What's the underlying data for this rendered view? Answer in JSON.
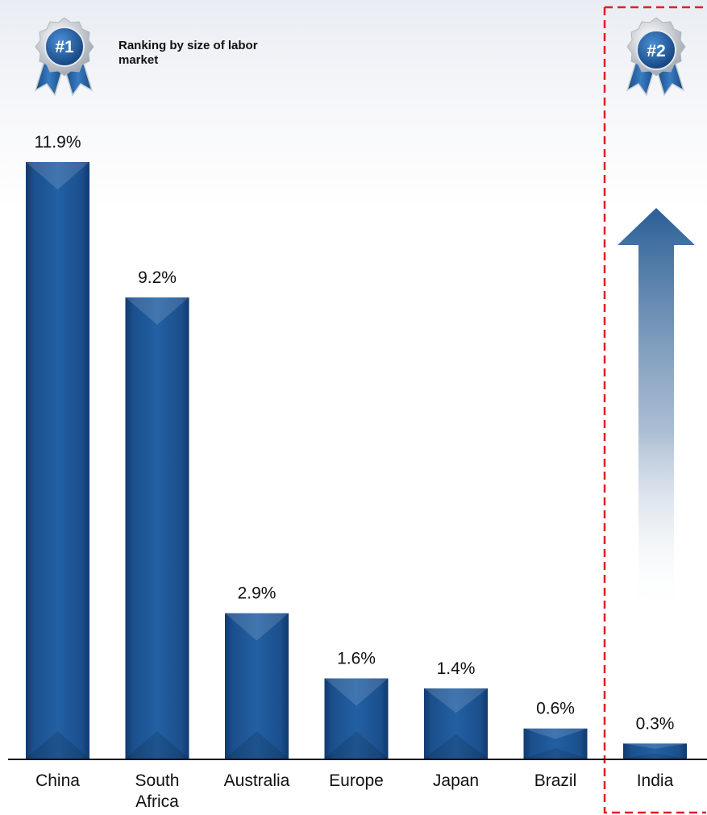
{
  "note": "Ranking by size of labor market",
  "badges": {
    "first": "#1",
    "second": "#2"
  },
  "colors": {
    "bar": "#1e5592",
    "highlight_box": "#e02020",
    "arrow": "#2b5f96"
  },
  "chart_data": {
    "type": "bar",
    "categories": [
      "China",
      "South Africa",
      "Australia",
      "Europe",
      "Japan",
      "Brazil",
      "India"
    ],
    "values": [
      11.9,
      9.2,
      2.9,
      1.6,
      1.4,
      0.6,
      0.3
    ],
    "data_labels": [
      "11.9%",
      "9.2%",
      "2.9%",
      "1.6%",
      "1.4%",
      "0.6%",
      "0.3%"
    ],
    "ylim": [
      0,
      11.9
    ],
    "grid": false,
    "highlighted_category": "India"
  }
}
